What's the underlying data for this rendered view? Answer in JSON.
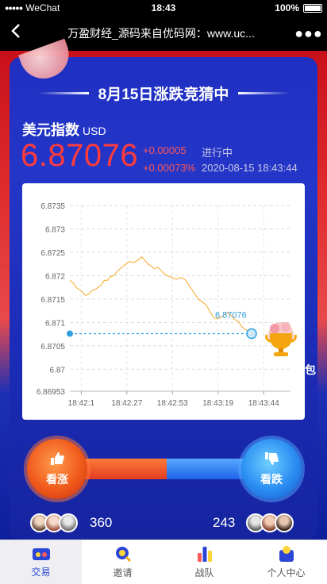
{
  "statusbar": {
    "carrier": "WeChat",
    "time": "18:43",
    "battery": "100%"
  },
  "navbar": {
    "title": "万盈财经_源码来自优码网：www.uc..."
  },
  "headline": "8月15日涨跌竞猜中",
  "quote": {
    "name": "美元指数",
    "unit": "USD",
    "price": "6.87076",
    "change": "+0.00005",
    "change_pct": "+0.00073%",
    "status": "进行中",
    "timestamp": "2020-08-15 18:43:44"
  },
  "side_text": "包",
  "bet": {
    "up_label": "看涨",
    "down_label": "看跌",
    "up_count": "360",
    "down_count": "243"
  },
  "tabs": [
    {
      "label": "交易",
      "icon": "trade-icon"
    },
    {
      "label": "邀请",
      "icon": "invite-icon"
    },
    {
      "label": "战队",
      "icon": "team-icon"
    },
    {
      "label": "个人中心",
      "icon": "profile-icon"
    }
  ],
  "colors": {
    "up": "#ff3b3b",
    "line": "#f5a623",
    "ref": "#2f9fe0",
    "active_tab": "#2b46d6"
  },
  "chart_data": {
    "type": "line",
    "title": "",
    "xlabel": "",
    "ylabel": "",
    "y_ticks": [
      "6.8735",
      "6.873",
      "6.8725",
      "6.872",
      "6.8715",
      "6.871",
      "6.8705",
      "6.87",
      "6.86953"
    ],
    "x_ticks": [
      "18:42:1",
      "18:42:27",
      "18:42:53",
      "18:43:19",
      "18:43:44"
    ],
    "ylim": [
      6.86953,
      6.8735
    ],
    "grid": true,
    "reference_line": 6.87076,
    "last_label": "6.87076",
    "series": [
      {
        "values": [
          6.8719,
          6.87185,
          6.87175,
          6.8717,
          6.87165,
          6.87158,
          6.8716,
          6.87168,
          6.8717,
          6.87175,
          6.8718,
          6.8719,
          6.8719,
          6.87198,
          6.872,
          6.87208,
          6.87215,
          6.8722,
          6.87225,
          6.8723,
          6.87228,
          6.8723,
          6.87235,
          6.8724,
          6.87232,
          6.87225,
          6.8722,
          6.87215,
          6.87218,
          6.87212,
          6.87205,
          6.872,
          6.87198,
          6.87195,
          6.87192,
          6.87196,
          6.87195,
          6.8719,
          6.8718,
          6.8717,
          6.8716,
          6.8715,
          6.87145,
          6.8714,
          6.87132,
          6.8712,
          6.8711,
          6.87108,
          6.8711,
          6.87115,
          6.8712,
          6.87118,
          6.8711,
          6.87105,
          6.871,
          6.8709,
          6.87085,
          6.87082,
          6.87076
        ]
      }
    ]
  }
}
